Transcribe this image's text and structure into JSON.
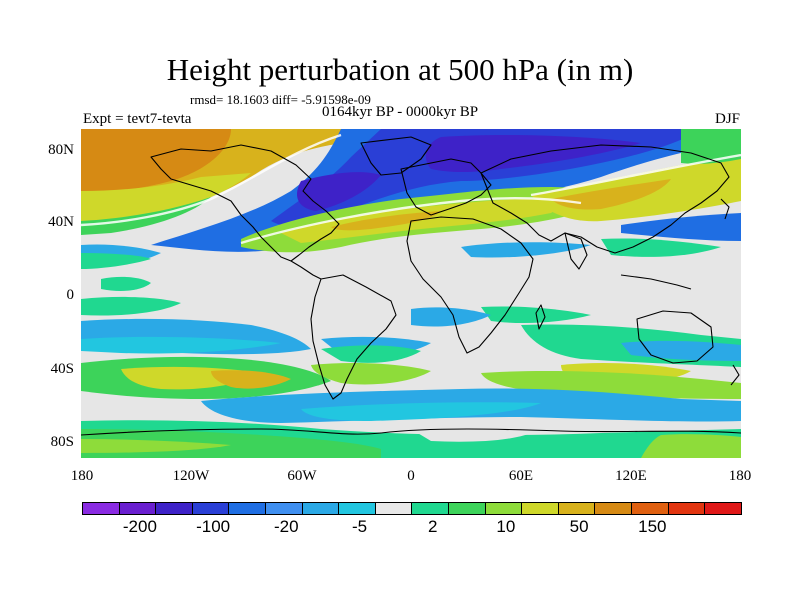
{
  "title": "Height perturbation at 500 hPa (in m)",
  "stats_line": "rmsd= 18.1603 diff= -5.91598e-09",
  "period": "0164kyr BP - 0000kyr BP",
  "experiment": "Expt = tevt7-tevta",
  "season": "DJF",
  "y_ticks": [
    "80N",
    "40N",
    "0",
    "40S",
    "80S"
  ],
  "x_ticks": [
    "180",
    "120W",
    "60W",
    "0",
    "60E",
    "120E",
    "180"
  ],
  "colorbar": {
    "colors": [
      "#8a2be2",
      "#6a1fd0",
      "#3e22c8",
      "#2a3fd6",
      "#1f6ee3",
      "#3f8ff0",
      "#2ba9e6",
      "#22c6e0",
      "#e8e8e8",
      "#20d890",
      "#3dd35a",
      "#8edc3a",
      "#cfd82a",
      "#d8b21c",
      "#d68a14",
      "#e06010",
      "#e23510",
      "#e01818"
    ],
    "labels": [
      "-200",
      "-100",
      "-20",
      "-5",
      "2",
      "10",
      "50",
      "150"
    ]
  },
  "map_colors": {
    "neutral": "#e6e6e6",
    "land_outline": "#000000",
    "contour_edge": "#ffffff"
  }
}
